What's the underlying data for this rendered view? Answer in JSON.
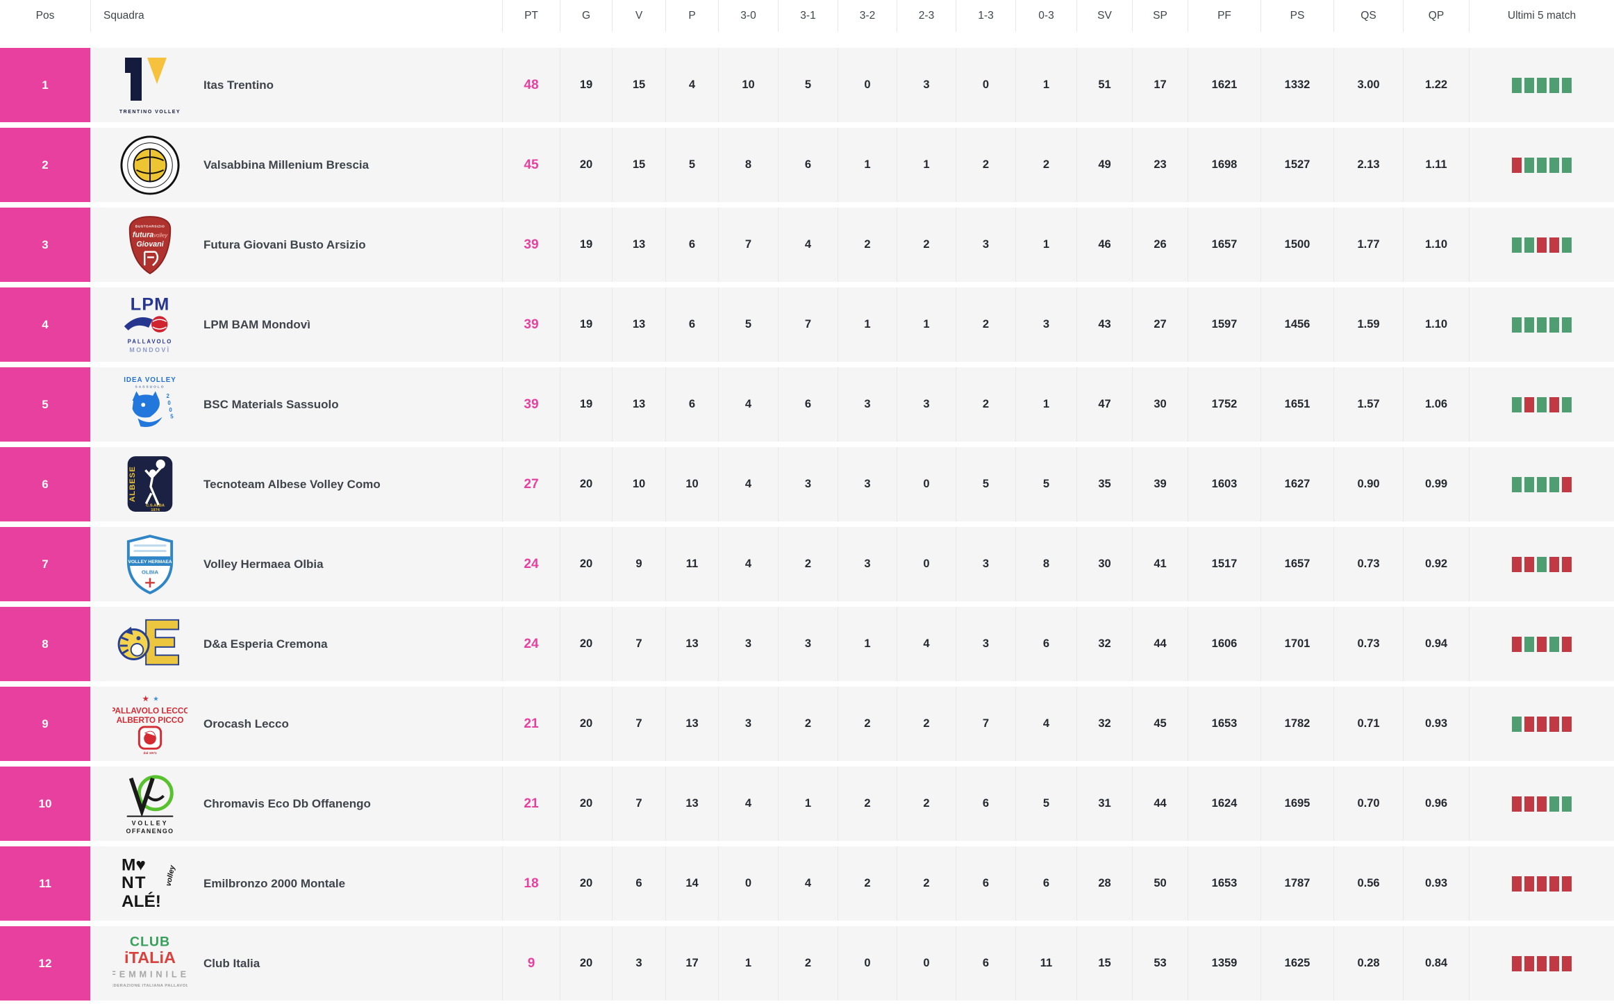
{
  "header": {
    "columns": [
      "Pos",
      "Squadra",
      "PT",
      "G",
      "V",
      "P",
      "3-0",
      "3-1",
      "3-2",
      "2-3",
      "1-3",
      "0-3",
      "SV",
      "SP",
      "PF",
      "PS",
      "QS",
      "QP",
      "Ultimi 5 match"
    ]
  },
  "colors": {
    "accent_pink": "#e8409e",
    "win_green": "#4f9e72",
    "loss_red": "#c13a43",
    "row_background": "#f5f5f6"
  },
  "rows": [
    {
      "pos": "1",
      "team": "Itas Trentino",
      "logo": "itas-trentino-logo",
      "pt": "48",
      "g": "19",
      "v": "15",
      "p": "4",
      "s30": "10",
      "s31": "5",
      "s32": "0",
      "s23": "3",
      "s13": "0",
      "s03": "1",
      "sv": "51",
      "sp": "17",
      "pf": "1621",
      "ps": "1332",
      "qs": "3.00",
      "qp": "1.22",
      "last5": [
        "W",
        "W",
        "W",
        "W",
        "W"
      ]
    },
    {
      "pos": "2",
      "team": "Valsabbina Millenium Brescia",
      "logo": "valsabbina-brescia-logo",
      "pt": "45",
      "g": "20",
      "v": "15",
      "p": "5",
      "s30": "8",
      "s31": "6",
      "s32": "1",
      "s23": "1",
      "s13": "2",
      "s03": "2",
      "sv": "49",
      "sp": "23",
      "pf": "1698",
      "ps": "1527",
      "qs": "2.13",
      "qp": "1.11",
      "last5": [
        "L",
        "W",
        "W",
        "W",
        "W"
      ]
    },
    {
      "pos": "3",
      "team": "Futura Giovani Busto Arsizio",
      "logo": "futura-busto-arsizio-logo",
      "pt": "39",
      "g": "19",
      "v": "13",
      "p": "6",
      "s30": "7",
      "s31": "4",
      "s32": "2",
      "s23": "2",
      "s13": "3",
      "s03": "1",
      "sv": "46",
      "sp": "26",
      "pf": "1657",
      "ps": "1500",
      "qs": "1.77",
      "qp": "1.10",
      "last5": [
        "W",
        "W",
        "L",
        "L",
        "W"
      ]
    },
    {
      "pos": "4",
      "team": "LPM BAM Mondovì",
      "logo": "lpm-mondovi-logo",
      "pt": "39",
      "g": "19",
      "v": "13",
      "p": "6",
      "s30": "5",
      "s31": "7",
      "s32": "1",
      "s23": "1",
      "s13": "2",
      "s03": "3",
      "sv": "43",
      "sp": "27",
      "pf": "1597",
      "ps": "1456",
      "qs": "1.59",
      "qp": "1.10",
      "last5": [
        "W",
        "W",
        "W",
        "W",
        "W"
      ]
    },
    {
      "pos": "5",
      "team": "BSC Materials Sassuolo",
      "logo": "bsc-sassuolo-logo",
      "pt": "39",
      "g": "19",
      "v": "13",
      "p": "6",
      "s30": "4",
      "s31": "6",
      "s32": "3",
      "s23": "3",
      "s13": "2",
      "s03": "1",
      "sv": "47",
      "sp": "30",
      "pf": "1752",
      "ps": "1651",
      "qs": "1.57",
      "qp": "1.06",
      "last5": [
        "W",
        "L",
        "W",
        "L",
        "W"
      ]
    },
    {
      "pos": "6",
      "team": "Tecnoteam Albese Volley Como",
      "logo": "albese-como-logo",
      "pt": "27",
      "g": "20",
      "v": "10",
      "p": "10",
      "s30": "4",
      "s31": "3",
      "s32": "3",
      "s23": "0",
      "s13": "5",
      "s03": "5",
      "sv": "35",
      "sp": "39",
      "pf": "1603",
      "ps": "1627",
      "qs": "0.90",
      "qp": "0.99",
      "last5": [
        "W",
        "W",
        "W",
        "W",
        "L"
      ]
    },
    {
      "pos": "7",
      "team": "Volley Hermaea Olbia",
      "logo": "hermaea-olbia-logo",
      "pt": "24",
      "g": "20",
      "v": "9",
      "p": "11",
      "s30": "4",
      "s31": "2",
      "s32": "3",
      "s23": "0",
      "s13": "3",
      "s03": "8",
      "sv": "30",
      "sp": "41",
      "pf": "1517",
      "ps": "1657",
      "qs": "0.73",
      "qp": "0.92",
      "last5": [
        "L",
        "L",
        "W",
        "L",
        "L"
      ]
    },
    {
      "pos": "8",
      "team": "D&a Esperia Cremona",
      "logo": "esperia-cremona-logo",
      "pt": "24",
      "g": "20",
      "v": "7",
      "p": "13",
      "s30": "3",
      "s31": "3",
      "s32": "1",
      "s23": "4",
      "s13": "3",
      "s03": "6",
      "sv": "32",
      "sp": "44",
      "pf": "1606",
      "ps": "1701",
      "qs": "0.73",
      "qp": "0.94",
      "last5": [
        "L",
        "W",
        "L",
        "W",
        "L"
      ]
    },
    {
      "pos": "9",
      "team": "Orocash Lecco",
      "logo": "orocash-lecco-logo",
      "pt": "21",
      "g": "20",
      "v": "7",
      "p": "13",
      "s30": "3",
      "s31": "2",
      "s32": "2",
      "s23": "2",
      "s13": "7",
      "s03": "4",
      "sv": "32",
      "sp": "45",
      "pf": "1653",
      "ps": "1782",
      "qs": "0.71",
      "qp": "0.93",
      "last5": [
        "W",
        "L",
        "L",
        "L",
        "L"
      ]
    },
    {
      "pos": "10",
      "team": "Chromavis Eco Db Offanengo",
      "logo": "offanengo-logo",
      "pt": "21",
      "g": "20",
      "v": "7",
      "p": "13",
      "s30": "4",
      "s31": "1",
      "s32": "2",
      "s23": "2",
      "s13": "6",
      "s03": "5",
      "sv": "31",
      "sp": "44",
      "pf": "1624",
      "ps": "1695",
      "qs": "0.70",
      "qp": "0.96",
      "last5": [
        "L",
        "L",
        "L",
        "W",
        "W"
      ]
    },
    {
      "pos": "11",
      "team": "Emilbronzo 2000 Montale",
      "logo": "montale-logo",
      "pt": "18",
      "g": "20",
      "v": "6",
      "p": "14",
      "s30": "0",
      "s31": "4",
      "s32": "2",
      "s23": "2",
      "s13": "6",
      "s03": "6",
      "sv": "28",
      "sp": "50",
      "pf": "1653",
      "ps": "1787",
      "qs": "0.56",
      "qp": "0.93",
      "last5": [
        "L",
        "L",
        "L",
        "L",
        "L"
      ]
    },
    {
      "pos": "12",
      "team": "Club Italia",
      "logo": "club-italia-logo",
      "pt": "9",
      "g": "20",
      "v": "3",
      "p": "17",
      "s30": "1",
      "s31": "2",
      "s32": "0",
      "s23": "0",
      "s13": "6",
      "s03": "11",
      "sv": "15",
      "sp": "53",
      "pf": "1359",
      "ps": "1625",
      "qs": "0.28",
      "qp": "0.84",
      "last5": [
        "L",
        "L",
        "L",
        "L",
        "L"
      ]
    }
  ]
}
